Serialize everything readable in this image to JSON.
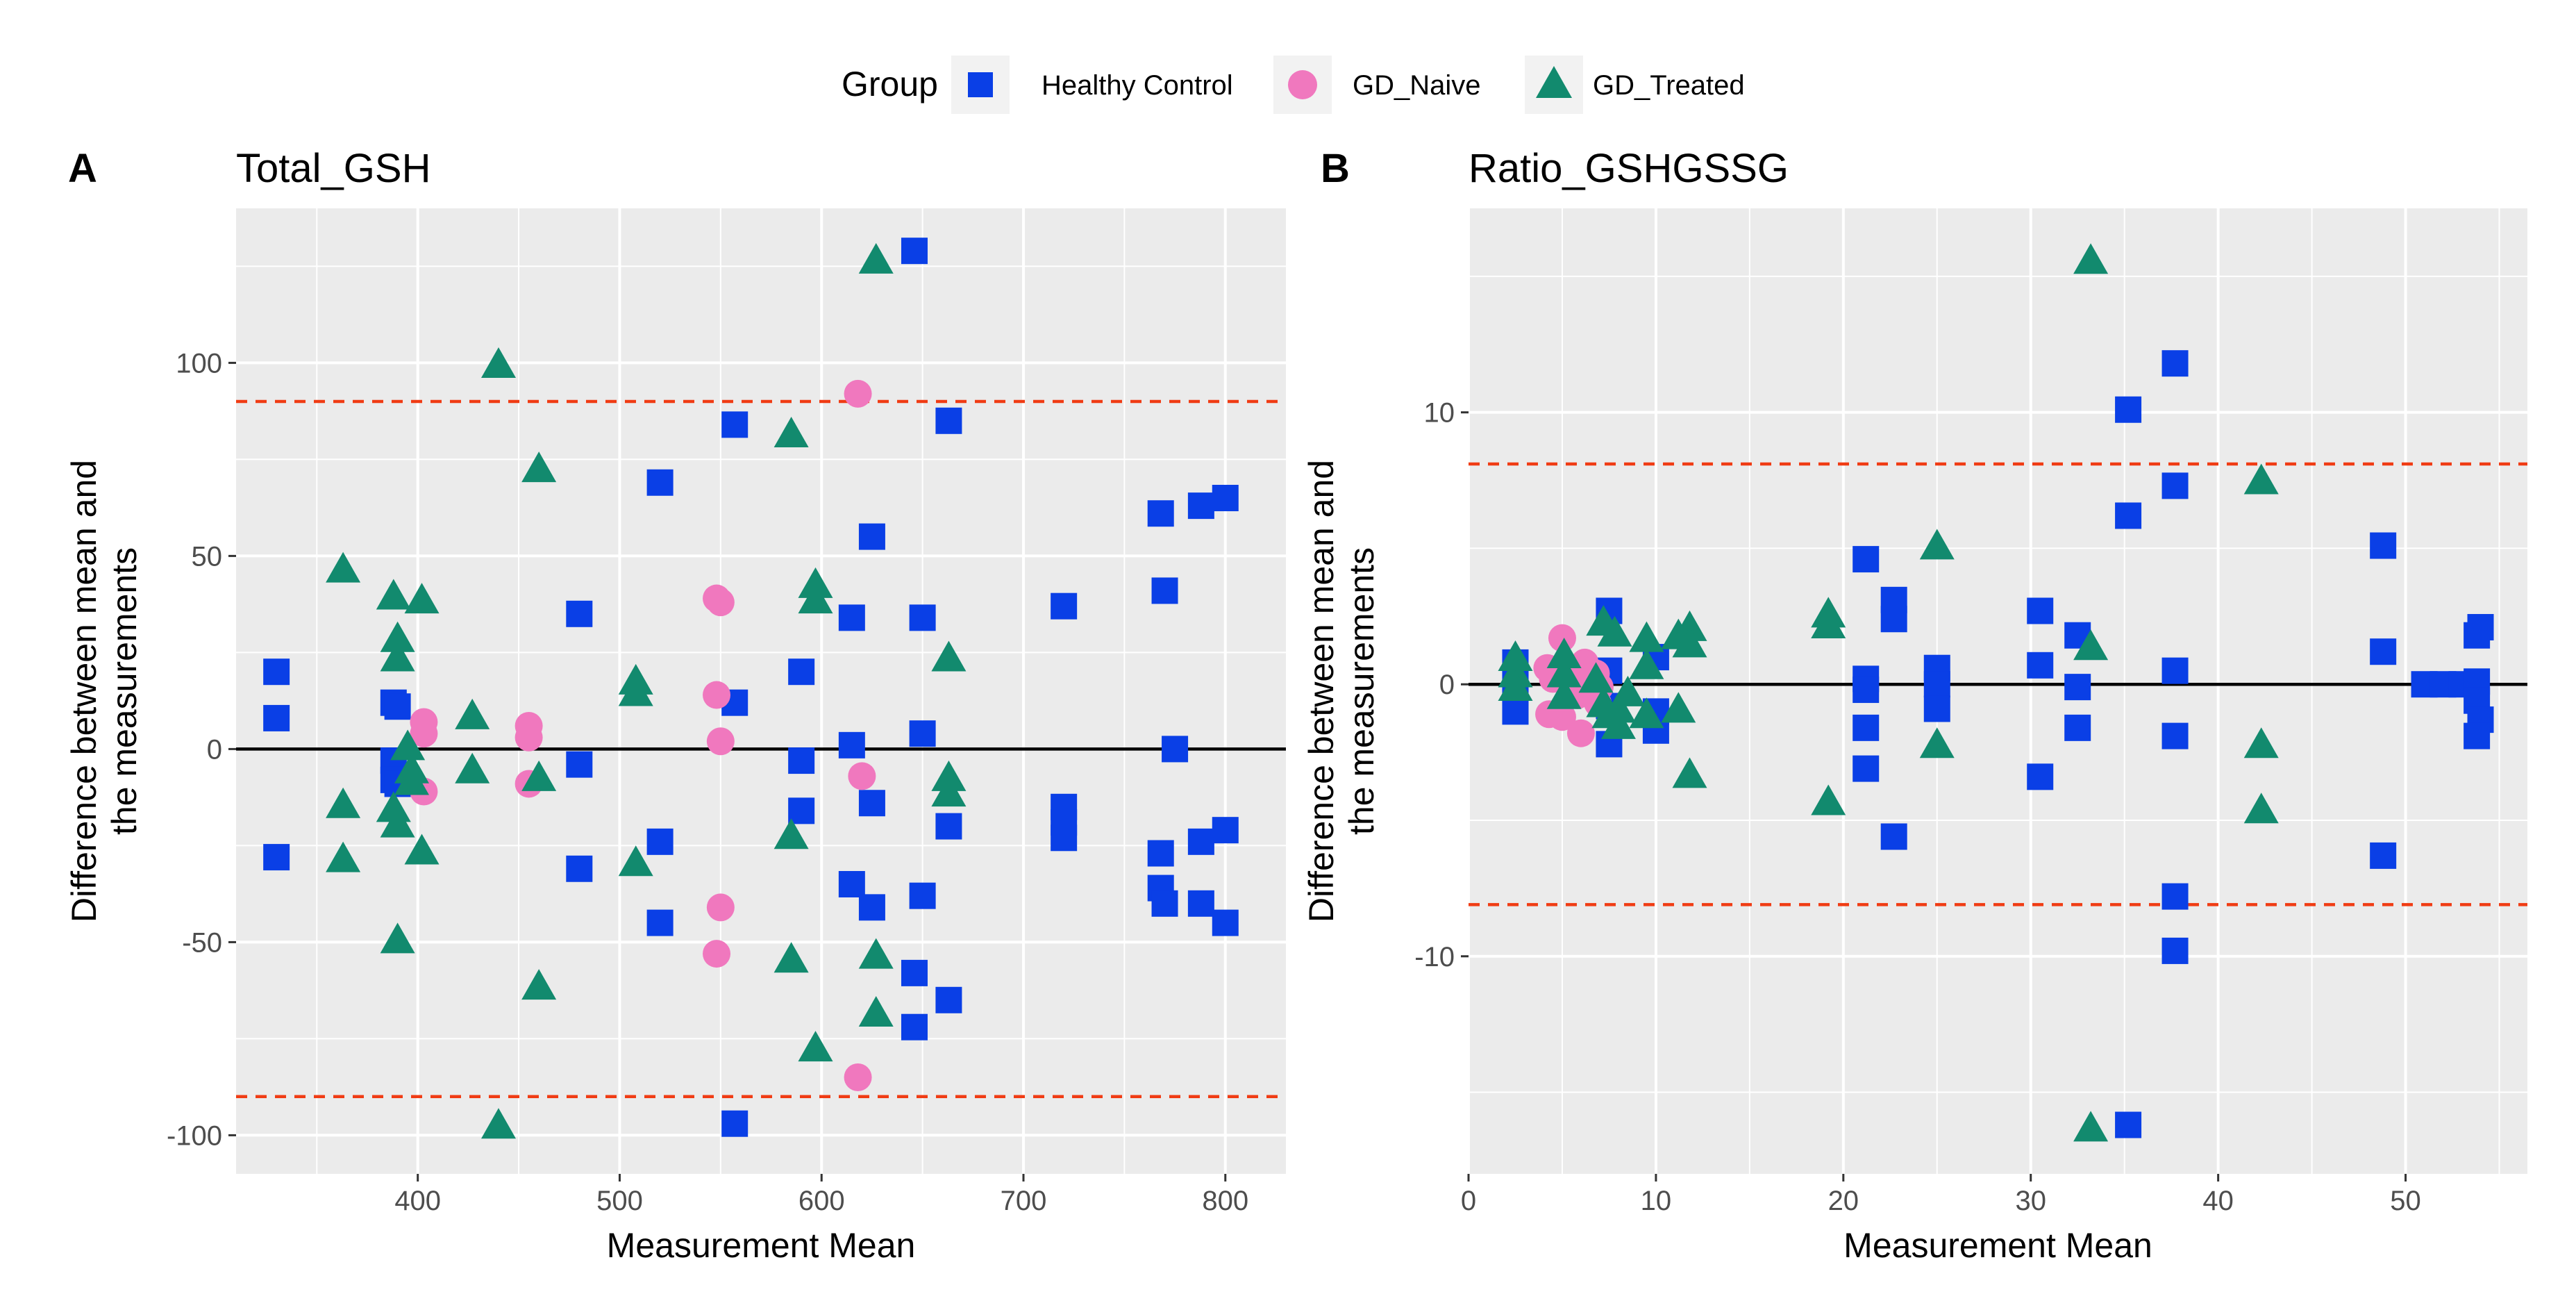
{
  "legend": {
    "title": "Group",
    "items": [
      {
        "label": "Healthy Control",
        "shape": "square",
        "color": "#0a3fe6"
      },
      {
        "label": "GD_Naive",
        "shape": "circle",
        "color": "#f078be"
      },
      {
        "label": "GD_Treated",
        "shape": "triangle",
        "color": "#128a6e"
      }
    ]
  },
  "colors": {
    "panel_bg": "#ebebeb",
    "grid": "#ffffff",
    "zero_line": "#000000",
    "limit_line": "#f03c14"
  },
  "chart_data": [
    {
      "type": "scatter",
      "tag": "A",
      "title": "Total_GSH",
      "xlabel": "Measurement Mean",
      "ylabel_lines": [
        "Difference between mean and",
        "the measurements"
      ],
      "xlim": [
        310,
        830
      ],
      "ylim": [
        -110,
        140
      ],
      "xticks": [
        400,
        500,
        600,
        700,
        800
      ],
      "yticks": [
        -100,
        -50,
        0,
        50,
        100
      ],
      "xtick_labels": [
        "400",
        "500",
        "600",
        "700",
        "800"
      ],
      "ytick_labels": [
        "-100",
        "-50",
        "0",
        "50",
        "100"
      ],
      "hlines": {
        "zero": 0,
        "upper": 90,
        "lower": -90
      },
      "series": [
        {
          "name": "Healthy Control",
          "points": [
            [
              330,
              20
            ],
            [
              330,
              8
            ],
            [
              330,
              -28
            ],
            [
              388,
              12
            ],
            [
              390,
              11
            ],
            [
              388,
              -3
            ],
            [
              388,
              -8
            ],
            [
              390,
              -9
            ],
            [
              480,
              35
            ],
            [
              480,
              -4
            ],
            [
              480,
              -31
            ],
            [
              520,
              69
            ],
            [
              520,
              -24
            ],
            [
              520,
              -45
            ],
            [
              557,
              84
            ],
            [
              557,
              12
            ],
            [
              557,
              -97
            ],
            [
              590,
              20
            ],
            [
              590,
              -3
            ],
            [
              590,
              -16
            ],
            [
              615,
              34
            ],
            [
              615,
              1
            ],
            [
              615,
              -35
            ],
            [
              625,
              55
            ],
            [
              625,
              -14
            ],
            [
              625,
              -41
            ],
            [
              646,
              129
            ],
            [
              646,
              -58
            ],
            [
              646,
              -72
            ],
            [
              650,
              34
            ],
            [
              650,
              4
            ],
            [
              650,
              -38
            ],
            [
              663,
              85
            ],
            [
              663,
              -20
            ],
            [
              663,
              -65
            ],
            [
              720,
              37
            ],
            [
              720,
              -15
            ],
            [
              720,
              -19
            ],
            [
              720,
              -23
            ],
            [
              768,
              61
            ],
            [
              768,
              -27
            ],
            [
              768,
              -36
            ],
            [
              770,
              41
            ],
            [
              770,
              -40
            ],
            [
              775,
              0
            ],
            [
              788,
              63
            ],
            [
              788,
              -24
            ],
            [
              788,
              -40
            ],
            [
              800,
              65
            ],
            [
              800,
              -21
            ],
            [
              800,
              -45
            ]
          ]
        },
        {
          "name": "GD_Naive",
          "points": [
            [
              403,
              7
            ],
            [
              403,
              4
            ],
            [
              403,
              -11
            ],
            [
              455,
              6
            ],
            [
              455,
              3
            ],
            [
              455,
              -9
            ],
            [
              548,
              39
            ],
            [
              550,
              38
            ],
            [
              548,
              14
            ],
            [
              550,
              2
            ],
            [
              548,
              -53
            ],
            [
              550,
              -41
            ],
            [
              618,
              92
            ],
            [
              620,
              -7
            ],
            [
              618,
              -85
            ]
          ]
        },
        {
          "name": "GD_Treated",
          "points": [
            [
              363,
              46
            ],
            [
              363,
              -15
            ],
            [
              363,
              -29
            ],
            [
              388,
              39
            ],
            [
              390,
              28
            ],
            [
              390,
              23
            ],
            [
              388,
              -16
            ],
            [
              390,
              -20
            ],
            [
              390,
              -50
            ],
            [
              395,
              0
            ],
            [
              397,
              -6
            ],
            [
              397,
              -9
            ],
            [
              402,
              38
            ],
            [
              402,
              -27
            ],
            [
              427,
              8
            ],
            [
              427,
              -6
            ],
            [
              440,
              99
            ],
            [
              440,
              -98
            ],
            [
              460,
              72
            ],
            [
              460,
              -8
            ],
            [
              460,
              -62
            ],
            [
              508,
              17
            ],
            [
              508,
              14
            ],
            [
              508,
              -30
            ],
            [
              585,
              81
            ],
            [
              585,
              -23
            ],
            [
              585,
              -55
            ],
            [
              597,
              42
            ],
            [
              597,
              38
            ],
            [
              597,
              -78
            ],
            [
              627,
              126
            ],
            [
              627,
              -54
            ],
            [
              627,
              -69
            ],
            [
              663,
              23
            ],
            [
              663,
              -8
            ],
            [
              663,
              -12
            ]
          ]
        }
      ]
    },
    {
      "type": "scatter",
      "tag": "B",
      "title": "Ratio_GSHGSSG",
      "xlabel": "Measurement Mean",
      "ylabel_lines": [
        "Difference between mean and",
        "the measurements"
      ],
      "xlim": [
        0,
        56.5
      ],
      "ylim": [
        -18,
        17.5
      ],
      "xticks": [
        0,
        10,
        20,
        30,
        40,
        50
      ],
      "yticks": [
        -10,
        0,
        10
      ],
      "xtick_labels": [
        "0",
        "10",
        "20",
        "30",
        "40",
        "50"
      ],
      "ytick_labels": [
        "-10",
        "0",
        "10"
      ],
      "hlines": {
        "zero": 0,
        "upper": 8.1,
        "lower": -8.1
      },
      "series": [
        {
          "name": "Healthy Control",
          "points": [
            [
              2.5,
              0.8
            ],
            [
              2.5,
              0.2
            ],
            [
              2.5,
              -0.3
            ],
            [
              2.5,
              -1.0
            ],
            [
              7.5,
              2.7
            ],
            [
              7.5,
              0.5
            ],
            [
              7.5,
              -0.8
            ],
            [
              7.5,
              -2.2
            ],
            [
              10.0,
              1.0
            ],
            [
              10.0,
              -1.0
            ],
            [
              10.0,
              -1.7
            ],
            [
              21.2,
              4.6
            ],
            [
              21.2,
              0.2
            ],
            [
              21.2,
              -0.2
            ],
            [
              21.2,
              -1.6
            ],
            [
              21.2,
              -3.1
            ],
            [
              22.7,
              3.1
            ],
            [
              22.7,
              2.4
            ],
            [
              22.7,
              -5.6
            ],
            [
              25.0,
              0.6
            ],
            [
              25.0,
              0.0
            ],
            [
              25.0,
              -0.9
            ],
            [
              30.5,
              2.7
            ],
            [
              30.5,
              0.7
            ],
            [
              30.5,
              -3.4
            ],
            [
              32.5,
              1.8
            ],
            [
              32.5,
              -0.1
            ],
            [
              32.5,
              -1.6
            ],
            [
              35.2,
              10.1
            ],
            [
              35.2,
              6.2
            ],
            [
              35.2,
              -16.2
            ],
            [
              37.7,
              11.8
            ],
            [
              37.7,
              7.3
            ],
            [
              37.7,
              0.5
            ],
            [
              37.7,
              -1.9
            ],
            [
              37.7,
              -7.8
            ],
            [
              37.7,
              -9.8
            ],
            [
              48.8,
              5.1
            ],
            [
              48.8,
              1.2
            ],
            [
              48.8,
              -6.3
            ],
            [
              51.0,
              0.0
            ],
            [
              52.0,
              0.0
            ],
            [
              53.0,
              0.0
            ],
            [
              53.8,
              1.8
            ],
            [
              54.0,
              2.1
            ],
            [
              53.8,
              0.1
            ],
            [
              53.8,
              -0.6
            ],
            [
              54.0,
              -1.3
            ],
            [
              53.8,
              -1.9
            ]
          ]
        },
        {
          "name": "GD_Naive",
          "points": [
            [
              4.2,
              0.6
            ],
            [
              4.5,
              0.2
            ],
            [
              4.3,
              -1.1
            ],
            [
              5.0,
              1.7
            ],
            [
              5.0,
              0.6
            ],
            [
              5.0,
              -1.2
            ],
            [
              5.6,
              0.3
            ],
            [
              5.8,
              -0.4
            ],
            [
              6.2,
              0.8
            ],
            [
              6.3,
              0.0
            ],
            [
              6.0,
              -1.8
            ],
            [
              6.8,
              0.4
            ],
            [
              7.0,
              -0.1
            ],
            [
              6.9,
              -0.7
            ]
          ]
        },
        {
          "name": "GD_Treated",
          "points": [
            [
              2.5,
              0.9
            ],
            [
              2.5,
              0.3
            ],
            [
              2.5,
              -0.2
            ],
            [
              5.1,
              1.0
            ],
            [
              5.1,
              0.3
            ],
            [
              5.1,
              -0.5
            ],
            [
              6.8,
              0.1
            ],
            [
              7.2,
              2.2
            ],
            [
              7.2,
              -0.8
            ],
            [
              7.5,
              -1.2
            ],
            [
              7.8,
              1.8
            ],
            [
              8.0,
              -1.0
            ],
            [
              8.0,
              -1.6
            ],
            [
              8.5,
              -0.4
            ],
            [
              9.5,
              1.6
            ],
            [
              9.5,
              -1.2
            ],
            [
              9.5,
              0.6
            ],
            [
              11.2,
              1.7
            ],
            [
              11.2,
              -1.0
            ],
            [
              11.8,
              2.0
            ],
            [
              11.8,
              1.4
            ],
            [
              11.8,
              -3.4
            ],
            [
              19.2,
              2.5
            ],
            [
              19.2,
              2.1
            ],
            [
              19.2,
              -4.4
            ],
            [
              25.0,
              5.0
            ],
            [
              25.0,
              -2.3
            ],
            [
              33.2,
              15.5
            ],
            [
              33.2,
              1.3
            ],
            [
              33.2,
              -16.4
            ],
            [
              42.3,
              7.4
            ],
            [
              42.3,
              -2.3
            ],
            [
              42.3,
              -4.7
            ]
          ]
        }
      ]
    }
  ]
}
